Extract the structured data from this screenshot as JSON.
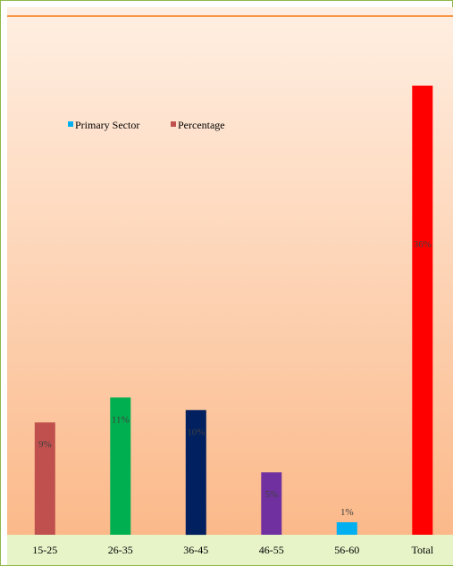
{
  "chart_data": {
    "type": "bar",
    "categories": [
      "15-25",
      "26-35",
      "36-45",
      "46-55",
      "56-60",
      "Total"
    ],
    "values": [
      9,
      11,
      10,
      5,
      1,
      36
    ],
    "data_labels": [
      "9%",
      "11%",
      "10%",
      "5%",
      "1%",
      "36%"
    ],
    "bar_colors": [
      "#c0504d",
      "#00b050",
      "#002060",
      "#7030a0",
      "#00b0f0",
      "#ff0000"
    ],
    "legend": [
      {
        "name": "Primary Sector",
        "color": "#00b0f0"
      },
      {
        "name": "Percentage",
        "color": "#c0504d"
      }
    ],
    "legend_position": "top-left",
    "ylim": [
      0,
      40
    ],
    "grid": false,
    "title": "",
    "xlabel": "",
    "ylabel": ""
  },
  "colors": {
    "plot_top": "#ffefe2",
    "plot_bottom": "#fbb98a",
    "axis_band": "#e6f4c8",
    "frame_border": "#8fb84a",
    "top_rule": "#f79646"
  }
}
